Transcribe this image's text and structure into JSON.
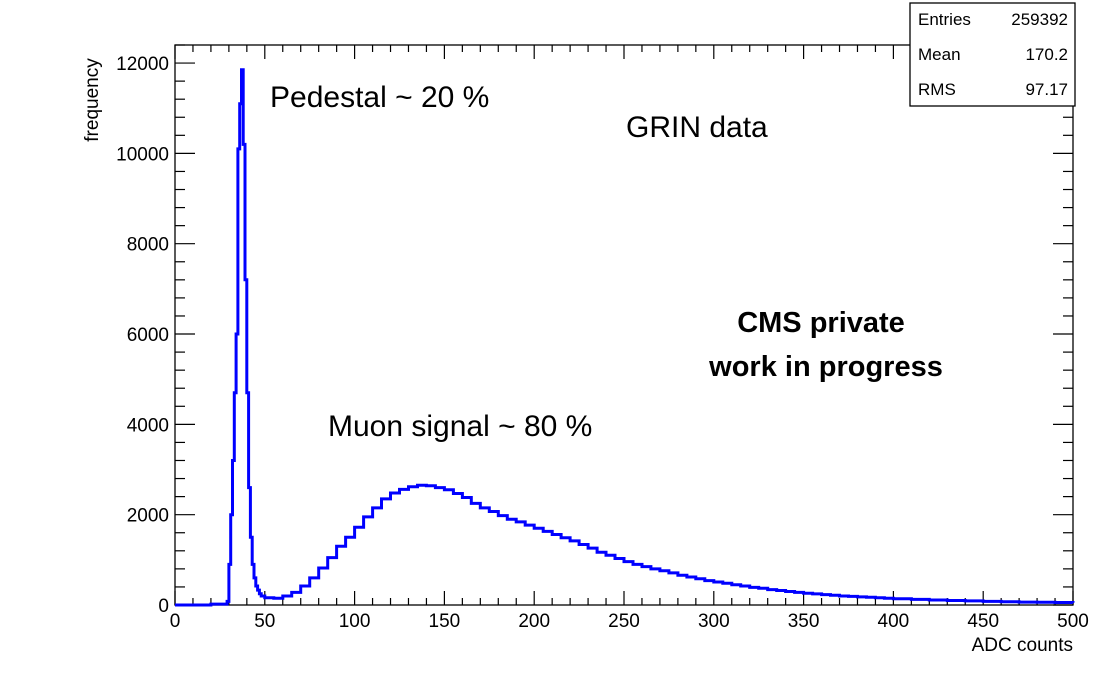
{
  "chart_data": {
    "type": "histogram",
    "xlabel": "ADC counts",
    "ylabel": "frequency",
    "xlim": [
      0,
      500
    ],
    "ylim": [
      0,
      12400
    ],
    "x_ticks": [
      "0",
      "50",
      "100",
      "150",
      "200",
      "250",
      "300",
      "350",
      "400",
      "450",
      "500"
    ],
    "y_ticks": [
      "0",
      "2000",
      "4000",
      "6000",
      "8000",
      "10000",
      "12000"
    ],
    "line_color": "#0000ff",
    "stats": {
      "entries_label": "Entries",
      "entries_value": "259392",
      "mean_label": "Mean",
      "mean_value": "170.2",
      "rms_label": "RMS",
      "rms_value": "97.17"
    },
    "annotations": {
      "pedestal": "Pedestal ~ 20 %",
      "muon": "Muon signal ~ 80 %",
      "grin": "GRIN data",
      "cms_line1": "CMS private",
      "cms_line2": "work in progress"
    },
    "series": [
      {
        "points": [
          [
            0,
            0
          ],
          [
            20,
            20
          ],
          [
            29,
            80
          ],
          [
            30,
            900
          ],
          [
            31,
            2000
          ],
          [
            32,
            3200
          ],
          [
            33,
            4700
          ],
          [
            34,
            6000
          ],
          [
            35,
            10100
          ],
          [
            36,
            11100
          ],
          [
            37,
            11850
          ],
          [
            38,
            10200
          ],
          [
            39,
            7200
          ],
          [
            40,
            4700
          ],
          [
            41,
            2600
          ],
          [
            42,
            1500
          ],
          [
            43,
            900
          ],
          [
            44,
            600
          ],
          [
            45,
            420
          ],
          [
            46,
            330
          ],
          [
            47,
            250
          ],
          [
            48,
            200
          ],
          [
            50,
            160
          ],
          [
            55,
            150
          ],
          [
            60,
            200
          ],
          [
            65,
            280
          ],
          [
            70,
            420
          ],
          [
            75,
            600
          ],
          [
            80,
            820
          ],
          [
            85,
            1050
          ],
          [
            90,
            1300
          ],
          [
            95,
            1500
          ],
          [
            100,
            1720
          ],
          [
            105,
            1950
          ],
          [
            110,
            2150
          ],
          [
            115,
            2350
          ],
          [
            120,
            2480
          ],
          [
            125,
            2560
          ],
          [
            130,
            2620
          ],
          [
            135,
            2650
          ],
          [
            140,
            2640
          ],
          [
            145,
            2600
          ],
          [
            150,
            2550
          ],
          [
            155,
            2470
          ],
          [
            160,
            2380
          ],
          [
            165,
            2250
          ],
          [
            170,
            2150
          ],
          [
            175,
            2070
          ],
          [
            180,
            1980
          ],
          [
            185,
            1900
          ],
          [
            190,
            1840
          ],
          [
            195,
            1770
          ],
          [
            200,
            1700
          ],
          [
            205,
            1630
          ],
          [
            210,
            1560
          ],
          [
            215,
            1490
          ],
          [
            220,
            1420
          ],
          [
            225,
            1340
          ],
          [
            230,
            1260
          ],
          [
            235,
            1170
          ],
          [
            240,
            1100
          ],
          [
            245,
            1030
          ],
          [
            250,
            960
          ],
          [
            255,
            900
          ],
          [
            260,
            850
          ],
          [
            265,
            800
          ],
          [
            270,
            760
          ],
          [
            275,
            710
          ],
          [
            280,
            660
          ],
          [
            285,
            620
          ],
          [
            290,
            580
          ],
          [
            295,
            540
          ],
          [
            300,
            510
          ],
          [
            305,
            480
          ],
          [
            310,
            450
          ],
          [
            315,
            420
          ],
          [
            320,
            390
          ],
          [
            325,
            370
          ],
          [
            330,
            340
          ],
          [
            335,
            320
          ],
          [
            340,
            300
          ],
          [
            345,
            280
          ],
          [
            350,
            260
          ],
          [
            355,
            245
          ],
          [
            360,
            230
          ],
          [
            365,
            215
          ],
          [
            370,
            200
          ],
          [
            375,
            190
          ],
          [
            380,
            180
          ],
          [
            385,
            170
          ],
          [
            390,
            160
          ],
          [
            395,
            150
          ],
          [
            400,
            140
          ],
          [
            410,
            125
          ],
          [
            420,
            110
          ],
          [
            430,
            100
          ],
          [
            440,
            90
          ],
          [
            450,
            80
          ],
          [
            460,
            72
          ],
          [
            470,
            65
          ],
          [
            480,
            60
          ],
          [
            490,
            55
          ],
          [
            500,
            50
          ]
        ]
      }
    ]
  }
}
